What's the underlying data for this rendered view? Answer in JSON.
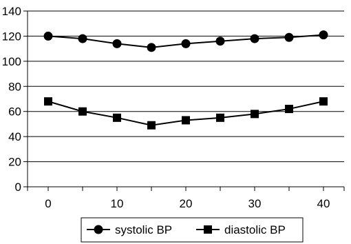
{
  "chart_data": {
    "type": "line",
    "title": "",
    "xlabel": "",
    "ylabel": "",
    "x": [
      0,
      5,
      10,
      15,
      20,
      25,
      30,
      35,
      40
    ],
    "xlim": [
      -3,
      43
    ],
    "ylim": [
      0,
      140
    ],
    "x_ticks": [
      0,
      10,
      20,
      30,
      40
    ],
    "x_minor_ticks": [
      -3,
      5,
      15,
      25,
      35,
      43
    ],
    "y_ticks": [
      0,
      20,
      40,
      60,
      80,
      100,
      120,
      140
    ],
    "grid": "horizontal",
    "legend_position": "bottom",
    "series": [
      {
        "name": "systolic BP",
        "marker": "circle",
        "color": "#000000",
        "values": [
          120,
          118,
          114,
          111,
          114,
          116,
          118,
          119,
          121
        ]
      },
      {
        "name": "diastolic BP",
        "marker": "square",
        "color": "#000000",
        "values": [
          68,
          60,
          55,
          49,
          53,
          55,
          58,
          62,
          68
        ]
      }
    ]
  }
}
